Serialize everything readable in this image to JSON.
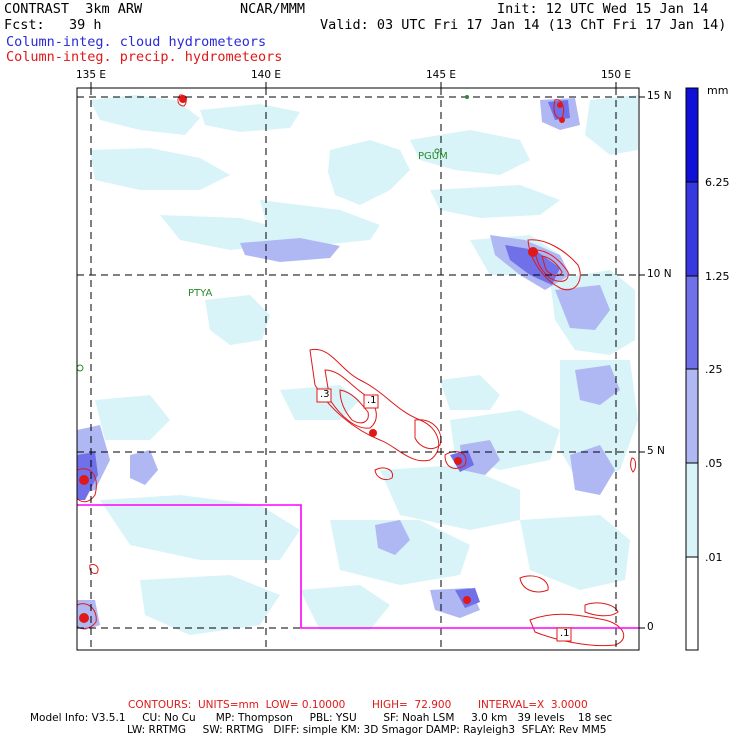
{
  "header": {
    "product": "CONTRAST  3km ARW",
    "org": "NCAR/MMM",
    "init": "Init: 12 UTC Wed 15 Jan 14",
    "fcst": "Fcst:   39 h",
    "valid": "Valid: 03 UTC Fri 17 Jan 14 (13 ChT Fri 17 Jan 14)",
    "field1": "Column-integ. cloud hydrometeors",
    "field2": "Column-integ. precip. hydrometeors"
  },
  "map": {
    "lon_labels": [
      "135 E",
      "140 E",
      "145 E",
      "150 E"
    ],
    "lat_labels": [
      "15 N",
      "10 N",
      "5 N",
      "0"
    ],
    "places": [
      "PGUM",
      "PTYA"
    ],
    "contour_labels": [
      ".3",
      ".1",
      ".1"
    ],
    "colors": {
      "level1": "#d8f4f8",
      "level2": "#b0b8f4",
      "level3": "#7070e8",
      "level4": "#3838e0",
      "level5": "#1010d8",
      "precip": "#e01818",
      "box": "#ff00ff"
    }
  },
  "colorbar": {
    "unit": "mm",
    "levels": [
      "6.25",
      "1.25",
      ".25",
      ".05",
      ".01"
    ]
  },
  "footer": {
    "contours": "CONTOURS:  UNITS=mm  LOW= 0.10000        HIGH=  72.900        INTERVAL=X  3.0000",
    "model1": "Model Info: V3.5.1     CU: No Cu      MP: Thompson     PBL: YSU        SF: Noah LSM     3.0 km   39 levels    18 sec",
    "model2": "LW: RRTMG     SW: RRTMG   DIFF: simple KM: 3D Smagor DAMP: Rayleigh3  SFLAY: Rev MM5"
  }
}
